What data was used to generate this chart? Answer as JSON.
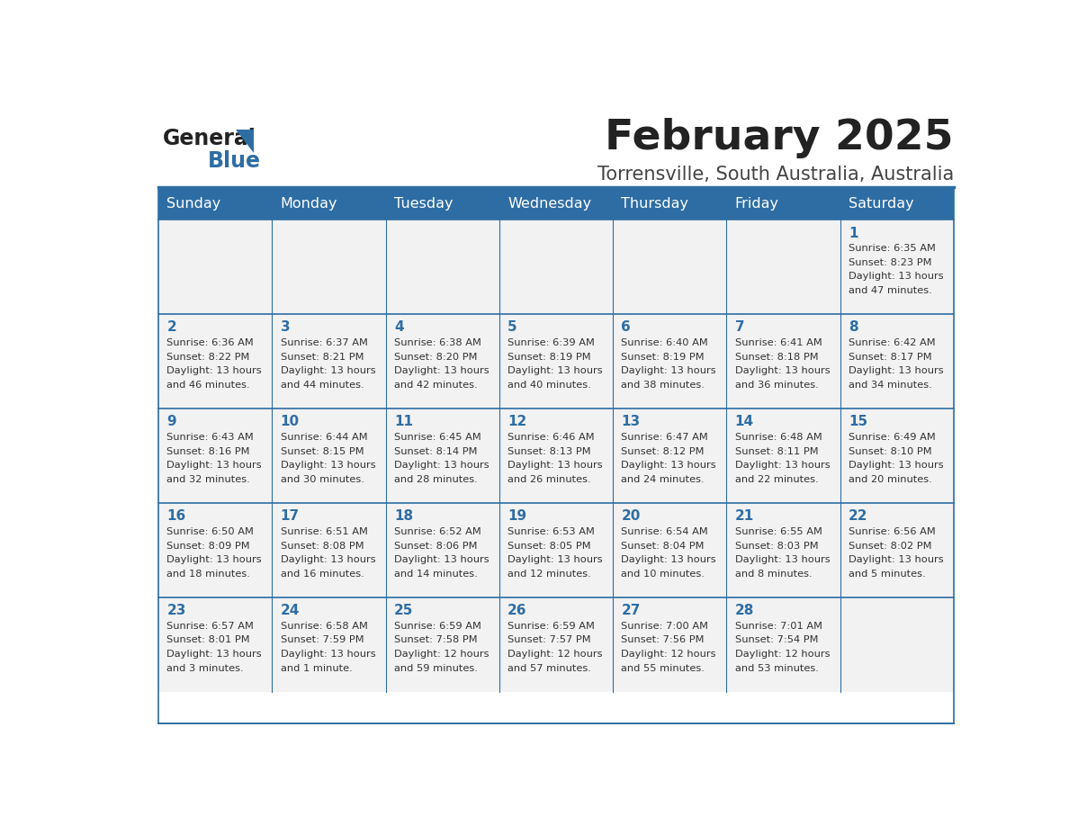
{
  "title": "February 2025",
  "subtitle": "Torrensville, South Australia, Australia",
  "days_of_week": [
    "Sunday",
    "Monday",
    "Tuesday",
    "Wednesday",
    "Thursday",
    "Friday",
    "Saturday"
  ],
  "header_bg": "#2E6DA4",
  "header_text": "#FFFFFF",
  "cell_bg_light": "#F2F2F2",
  "cell_text": "#333333",
  "day_num_color": "#2E6DA4",
  "border_color": "#2E6DA4",
  "title_color": "#222222",
  "subtitle_color": "#444444",
  "logo_general_color": "#222222",
  "logo_blue_color": "#2E6DA4",
  "weeks": [
    [
      {
        "day": null,
        "sunrise": null,
        "sunset": null,
        "daylight": null
      },
      {
        "day": null,
        "sunrise": null,
        "sunset": null,
        "daylight": null
      },
      {
        "day": null,
        "sunrise": null,
        "sunset": null,
        "daylight": null
      },
      {
        "day": null,
        "sunrise": null,
        "sunset": null,
        "daylight": null
      },
      {
        "day": null,
        "sunrise": null,
        "sunset": null,
        "daylight": null
      },
      {
        "day": null,
        "sunrise": null,
        "sunset": null,
        "daylight": null
      },
      {
        "day": 1,
        "sunrise": "6:35 AM",
        "sunset": "8:23 PM",
        "daylight": "13 hours and 47 minutes."
      }
    ],
    [
      {
        "day": 2,
        "sunrise": "6:36 AM",
        "sunset": "8:22 PM",
        "daylight": "13 hours and 46 minutes."
      },
      {
        "day": 3,
        "sunrise": "6:37 AM",
        "sunset": "8:21 PM",
        "daylight": "13 hours and 44 minutes."
      },
      {
        "day": 4,
        "sunrise": "6:38 AM",
        "sunset": "8:20 PM",
        "daylight": "13 hours and 42 minutes."
      },
      {
        "day": 5,
        "sunrise": "6:39 AM",
        "sunset": "8:19 PM",
        "daylight": "13 hours and 40 minutes."
      },
      {
        "day": 6,
        "sunrise": "6:40 AM",
        "sunset": "8:19 PM",
        "daylight": "13 hours and 38 minutes."
      },
      {
        "day": 7,
        "sunrise": "6:41 AM",
        "sunset": "8:18 PM",
        "daylight": "13 hours and 36 minutes."
      },
      {
        "day": 8,
        "sunrise": "6:42 AM",
        "sunset": "8:17 PM",
        "daylight": "13 hours and 34 minutes."
      }
    ],
    [
      {
        "day": 9,
        "sunrise": "6:43 AM",
        "sunset": "8:16 PM",
        "daylight": "13 hours and 32 minutes."
      },
      {
        "day": 10,
        "sunrise": "6:44 AM",
        "sunset": "8:15 PM",
        "daylight": "13 hours and 30 minutes."
      },
      {
        "day": 11,
        "sunrise": "6:45 AM",
        "sunset": "8:14 PM",
        "daylight": "13 hours and 28 minutes."
      },
      {
        "day": 12,
        "sunrise": "6:46 AM",
        "sunset": "8:13 PM",
        "daylight": "13 hours and 26 minutes."
      },
      {
        "day": 13,
        "sunrise": "6:47 AM",
        "sunset": "8:12 PM",
        "daylight": "13 hours and 24 minutes."
      },
      {
        "day": 14,
        "sunrise": "6:48 AM",
        "sunset": "8:11 PM",
        "daylight": "13 hours and 22 minutes."
      },
      {
        "day": 15,
        "sunrise": "6:49 AM",
        "sunset": "8:10 PM",
        "daylight": "13 hours and 20 minutes."
      }
    ],
    [
      {
        "day": 16,
        "sunrise": "6:50 AM",
        "sunset": "8:09 PM",
        "daylight": "13 hours and 18 minutes."
      },
      {
        "day": 17,
        "sunrise": "6:51 AM",
        "sunset": "8:08 PM",
        "daylight": "13 hours and 16 minutes."
      },
      {
        "day": 18,
        "sunrise": "6:52 AM",
        "sunset": "8:06 PM",
        "daylight": "13 hours and 14 minutes."
      },
      {
        "day": 19,
        "sunrise": "6:53 AM",
        "sunset": "8:05 PM",
        "daylight": "13 hours and 12 minutes."
      },
      {
        "day": 20,
        "sunrise": "6:54 AM",
        "sunset": "8:04 PM",
        "daylight": "13 hours and 10 minutes."
      },
      {
        "day": 21,
        "sunrise": "6:55 AM",
        "sunset": "8:03 PM",
        "daylight": "13 hours and 8 minutes."
      },
      {
        "day": 22,
        "sunrise": "6:56 AM",
        "sunset": "8:02 PM",
        "daylight": "13 hours and 5 minutes."
      }
    ],
    [
      {
        "day": 23,
        "sunrise": "6:57 AM",
        "sunset": "8:01 PM",
        "daylight": "13 hours and 3 minutes."
      },
      {
        "day": 24,
        "sunrise": "6:58 AM",
        "sunset": "7:59 PM",
        "daylight": "13 hours and 1 minute."
      },
      {
        "day": 25,
        "sunrise": "6:59 AM",
        "sunset": "7:58 PM",
        "daylight": "12 hours and 59 minutes."
      },
      {
        "day": 26,
        "sunrise": "6:59 AM",
        "sunset": "7:57 PM",
        "daylight": "12 hours and 57 minutes."
      },
      {
        "day": 27,
        "sunrise": "7:00 AM",
        "sunset": "7:56 PM",
        "daylight": "12 hours and 55 minutes."
      },
      {
        "day": 28,
        "sunrise": "7:01 AM",
        "sunset": "7:54 PM",
        "daylight": "12 hours and 53 minutes."
      },
      {
        "day": null,
        "sunrise": null,
        "sunset": null,
        "daylight": null
      }
    ]
  ]
}
